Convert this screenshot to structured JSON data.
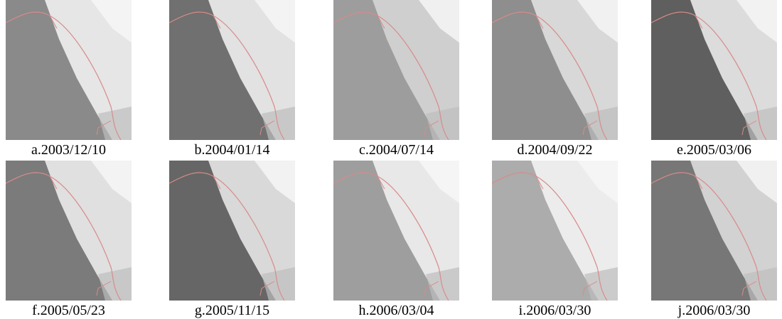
{
  "panels": [
    {
      "label": "a.2003/12/10"
    },
    {
      "label": "b.2004/01/14"
    },
    {
      "label": "c.2004/07/14"
    },
    {
      "label": "d.2004/09/22"
    },
    {
      "label": "e.2005/03/06"
    },
    {
      "label": "f.2005/05/23"
    },
    {
      "label": "g.2005/11/15"
    },
    {
      "label": "h.2006/03/04"
    },
    {
      "label": "i.2006/03/30"
    },
    {
      "label": "j.2006/03/30"
    }
  ]
}
